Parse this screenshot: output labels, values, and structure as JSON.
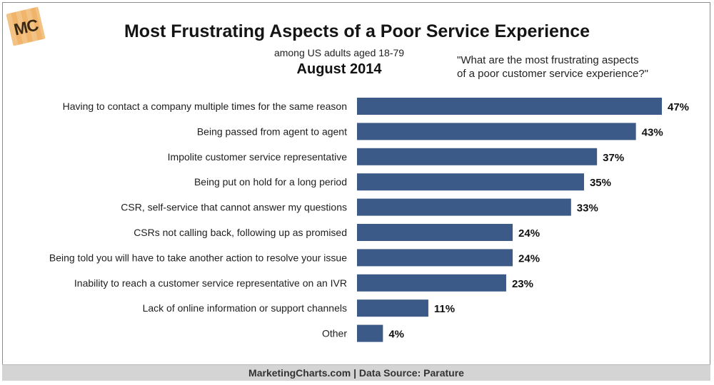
{
  "header": {
    "logo_text": "MC",
    "title": "Most Frustrating Aspects of a Poor Service Experience",
    "subtitle": "among US adults aged 18-79",
    "date": "August 2014",
    "question_line1": "\"What are the most frustrating aspects",
    "question_line2": "of a poor customer service experience?\""
  },
  "footer": {
    "text": "MarketingCharts.com | Data Source: Parature"
  },
  "colors": {
    "bar": "#3c5a87",
    "logo": "#f0b56a"
  },
  "chart_data": {
    "type": "bar",
    "orientation": "horizontal",
    "title": "Most Frustrating Aspects of a Poor Service Experience",
    "subtitle": "among US adults aged 18-79",
    "unit": "%",
    "xlim": [
      0,
      47
    ],
    "grid": false,
    "categories": [
      "Having to contact a company multiple times for the same reason",
      "Being passed from agent to agent",
      "Impolite customer service representative",
      "Being put on hold for a long period",
      "CSR, self-service that cannot answer my questions",
      "CSRs not calling back, following up as promised",
      "Being told you will have to take another action to resolve your issue",
      "Inability to reach a customer service representative on an IVR",
      "Lack of online information or support channels",
      "Other"
    ],
    "values": [
      47,
      43,
      37,
      35,
      33,
      24,
      24,
      23,
      11,
      4
    ],
    "value_labels": [
      "47%",
      "43%",
      "37%",
      "35%",
      "33%",
      "24%",
      "24%",
      "23%",
      "11%",
      "4%"
    ]
  }
}
